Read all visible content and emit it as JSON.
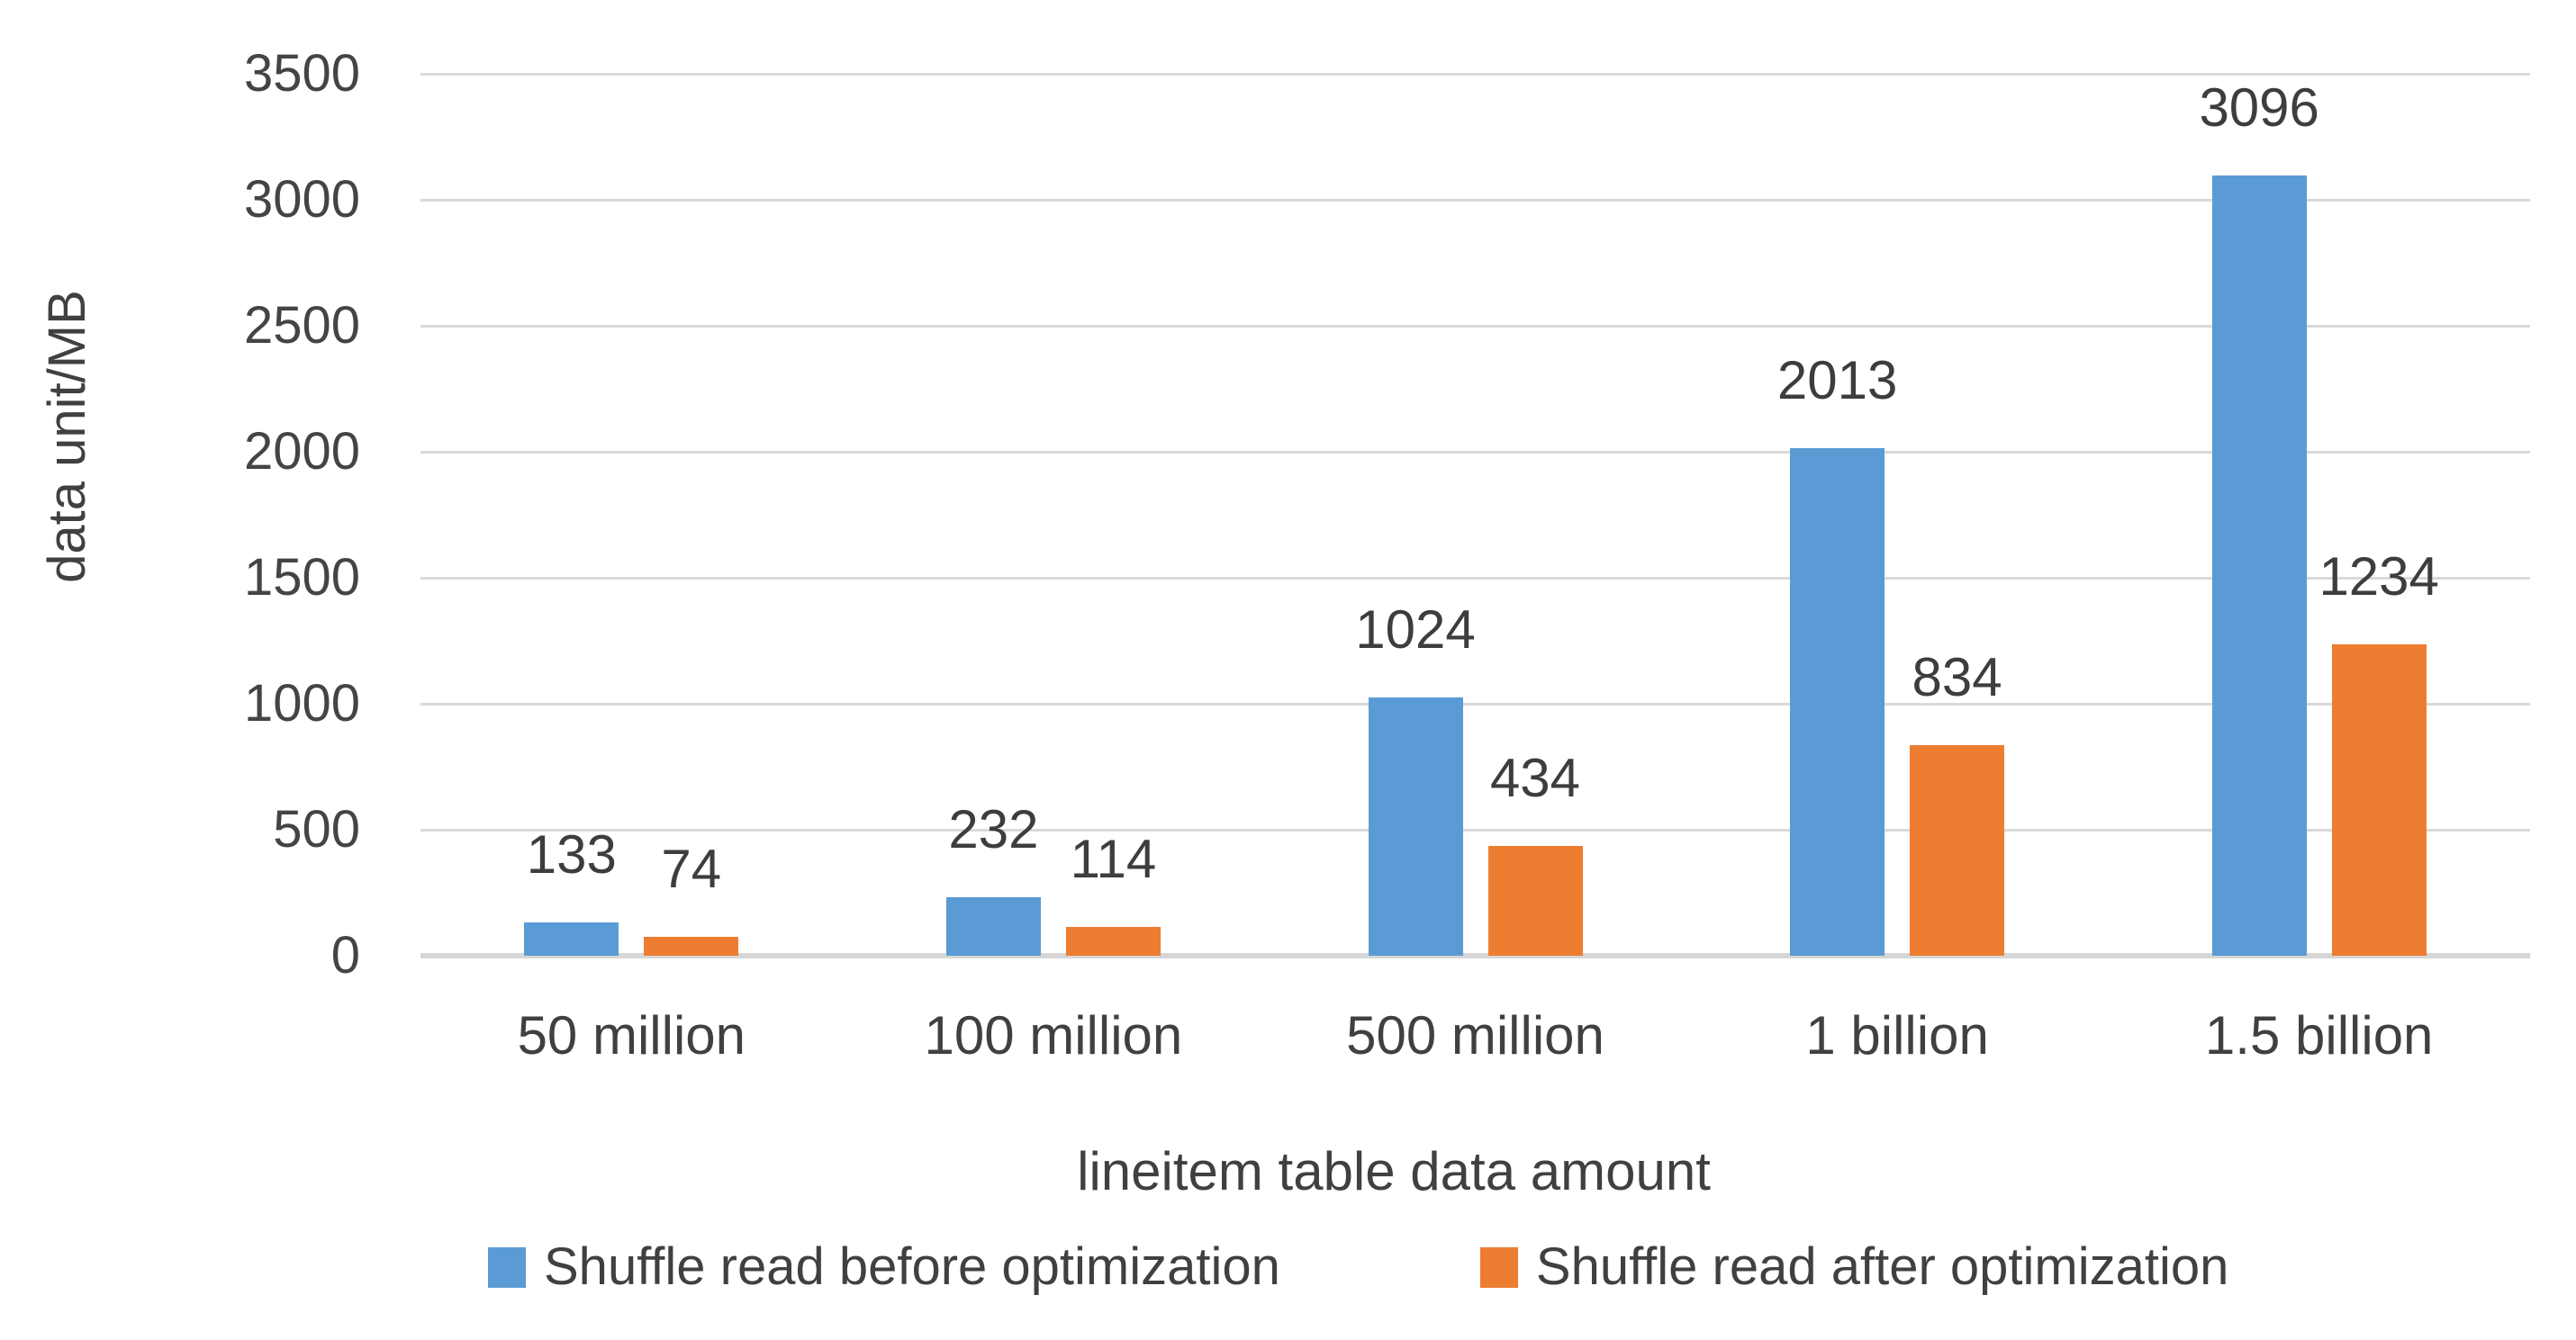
{
  "chart_data": {
    "type": "bar",
    "categories": [
      "50 million",
      "100 million",
      "500 million",
      "1 billion",
      "1.5 billion"
    ],
    "series": [
      {
        "name": "Shuffle read before optimization",
        "color": "#5B9BD5",
        "values": [
          133,
          232,
          1024,
          2013,
          3096
        ]
      },
      {
        "name": "Shuffle read after optimization",
        "color": "#ED7D31",
        "values": [
          74,
          114,
          434,
          834,
          1234
        ]
      }
    ],
    "title": "",
    "xlabel": "lineitem table data amount",
    "ylabel": "data unit/MB",
    "ylim": [
      0,
      3500
    ],
    "y_ticks": [
      0,
      500,
      1000,
      1500,
      2000,
      2500,
      3000,
      3500
    ],
    "grid": "horizontal",
    "legend_position": "bottom",
    "data_labels": true,
    "gridline_color": "#d9d9d9",
    "axis_line_color": "#d6d6d6",
    "text_color": "#404040"
  }
}
